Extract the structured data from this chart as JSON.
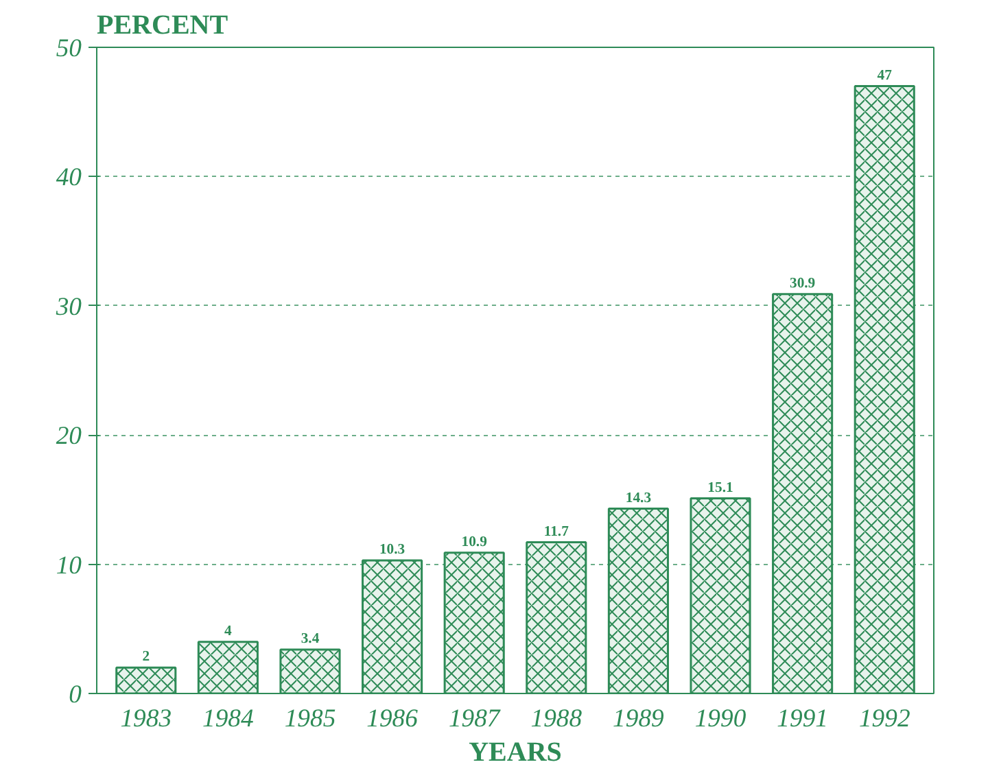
{
  "chart_data": {
    "type": "bar",
    "ylabel": "PERCENT",
    "xlabel": "YEARS",
    "categories": [
      "1983",
      "1984",
      "1985",
      "1986",
      "1987",
      "1988",
      "1989",
      "1990",
      "1991",
      "1992"
    ],
    "values": [
      2,
      4,
      3.4,
      10.3,
      10.9,
      11.7,
      14.3,
      15.1,
      30.9,
      47
    ],
    "color": "#2e8b57",
    "ylim": [
      0,
      50
    ],
    "yticks": [
      0,
      10,
      20,
      30,
      40,
      50
    ],
    "grid": "y",
    "data_labels": true
  }
}
